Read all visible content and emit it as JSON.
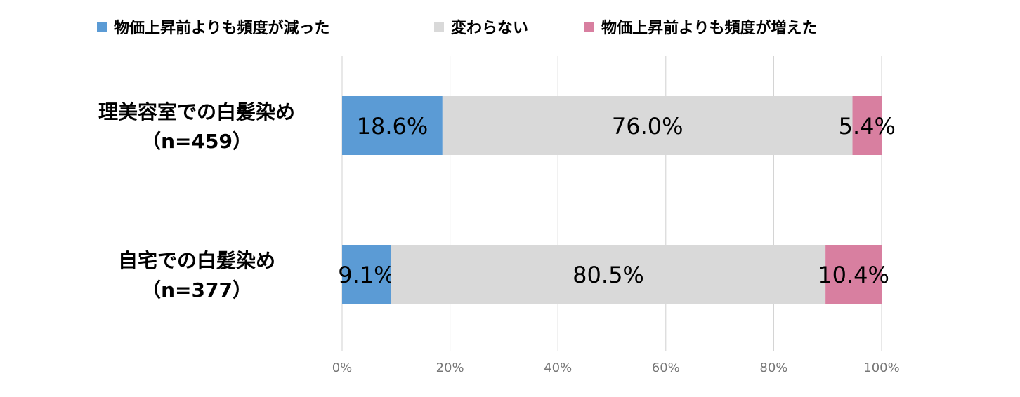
{
  "chart_data": {
    "type": "bar",
    "orientation": "horizontal",
    "stacked": true,
    "percent_stacked": true,
    "legend_position": "top",
    "grid": true,
    "xlim": [
      0,
      100
    ],
    "x_ticks": [
      "0%",
      "20%",
      "40%",
      "60%",
      "80%",
      "100%"
    ],
    "categories": [
      [
        "理美容室での白髪染め",
        "（n=459）"
      ],
      [
        "自宅での白髪染め",
        "（n=377）"
      ]
    ],
    "series": [
      {
        "name": "物価上昇前よりも頻度が減った",
        "color": "#5b9bd5",
        "values": [
          18.6,
          9.1
        ],
        "labels": [
          "18.6%",
          "9.1%"
        ]
      },
      {
        "name": "変わらない",
        "color": "#d9d9d9",
        "values": [
          76.0,
          80.5
        ],
        "labels": [
          "76.0%",
          "80.5%"
        ]
      },
      {
        "name": "物価上昇前よりも頻度が増えた",
        "color": "#d87fa0",
        "values": [
          5.4,
          10.4
        ],
        "labels": [
          "5.4%",
          "10.4%"
        ]
      }
    ]
  }
}
